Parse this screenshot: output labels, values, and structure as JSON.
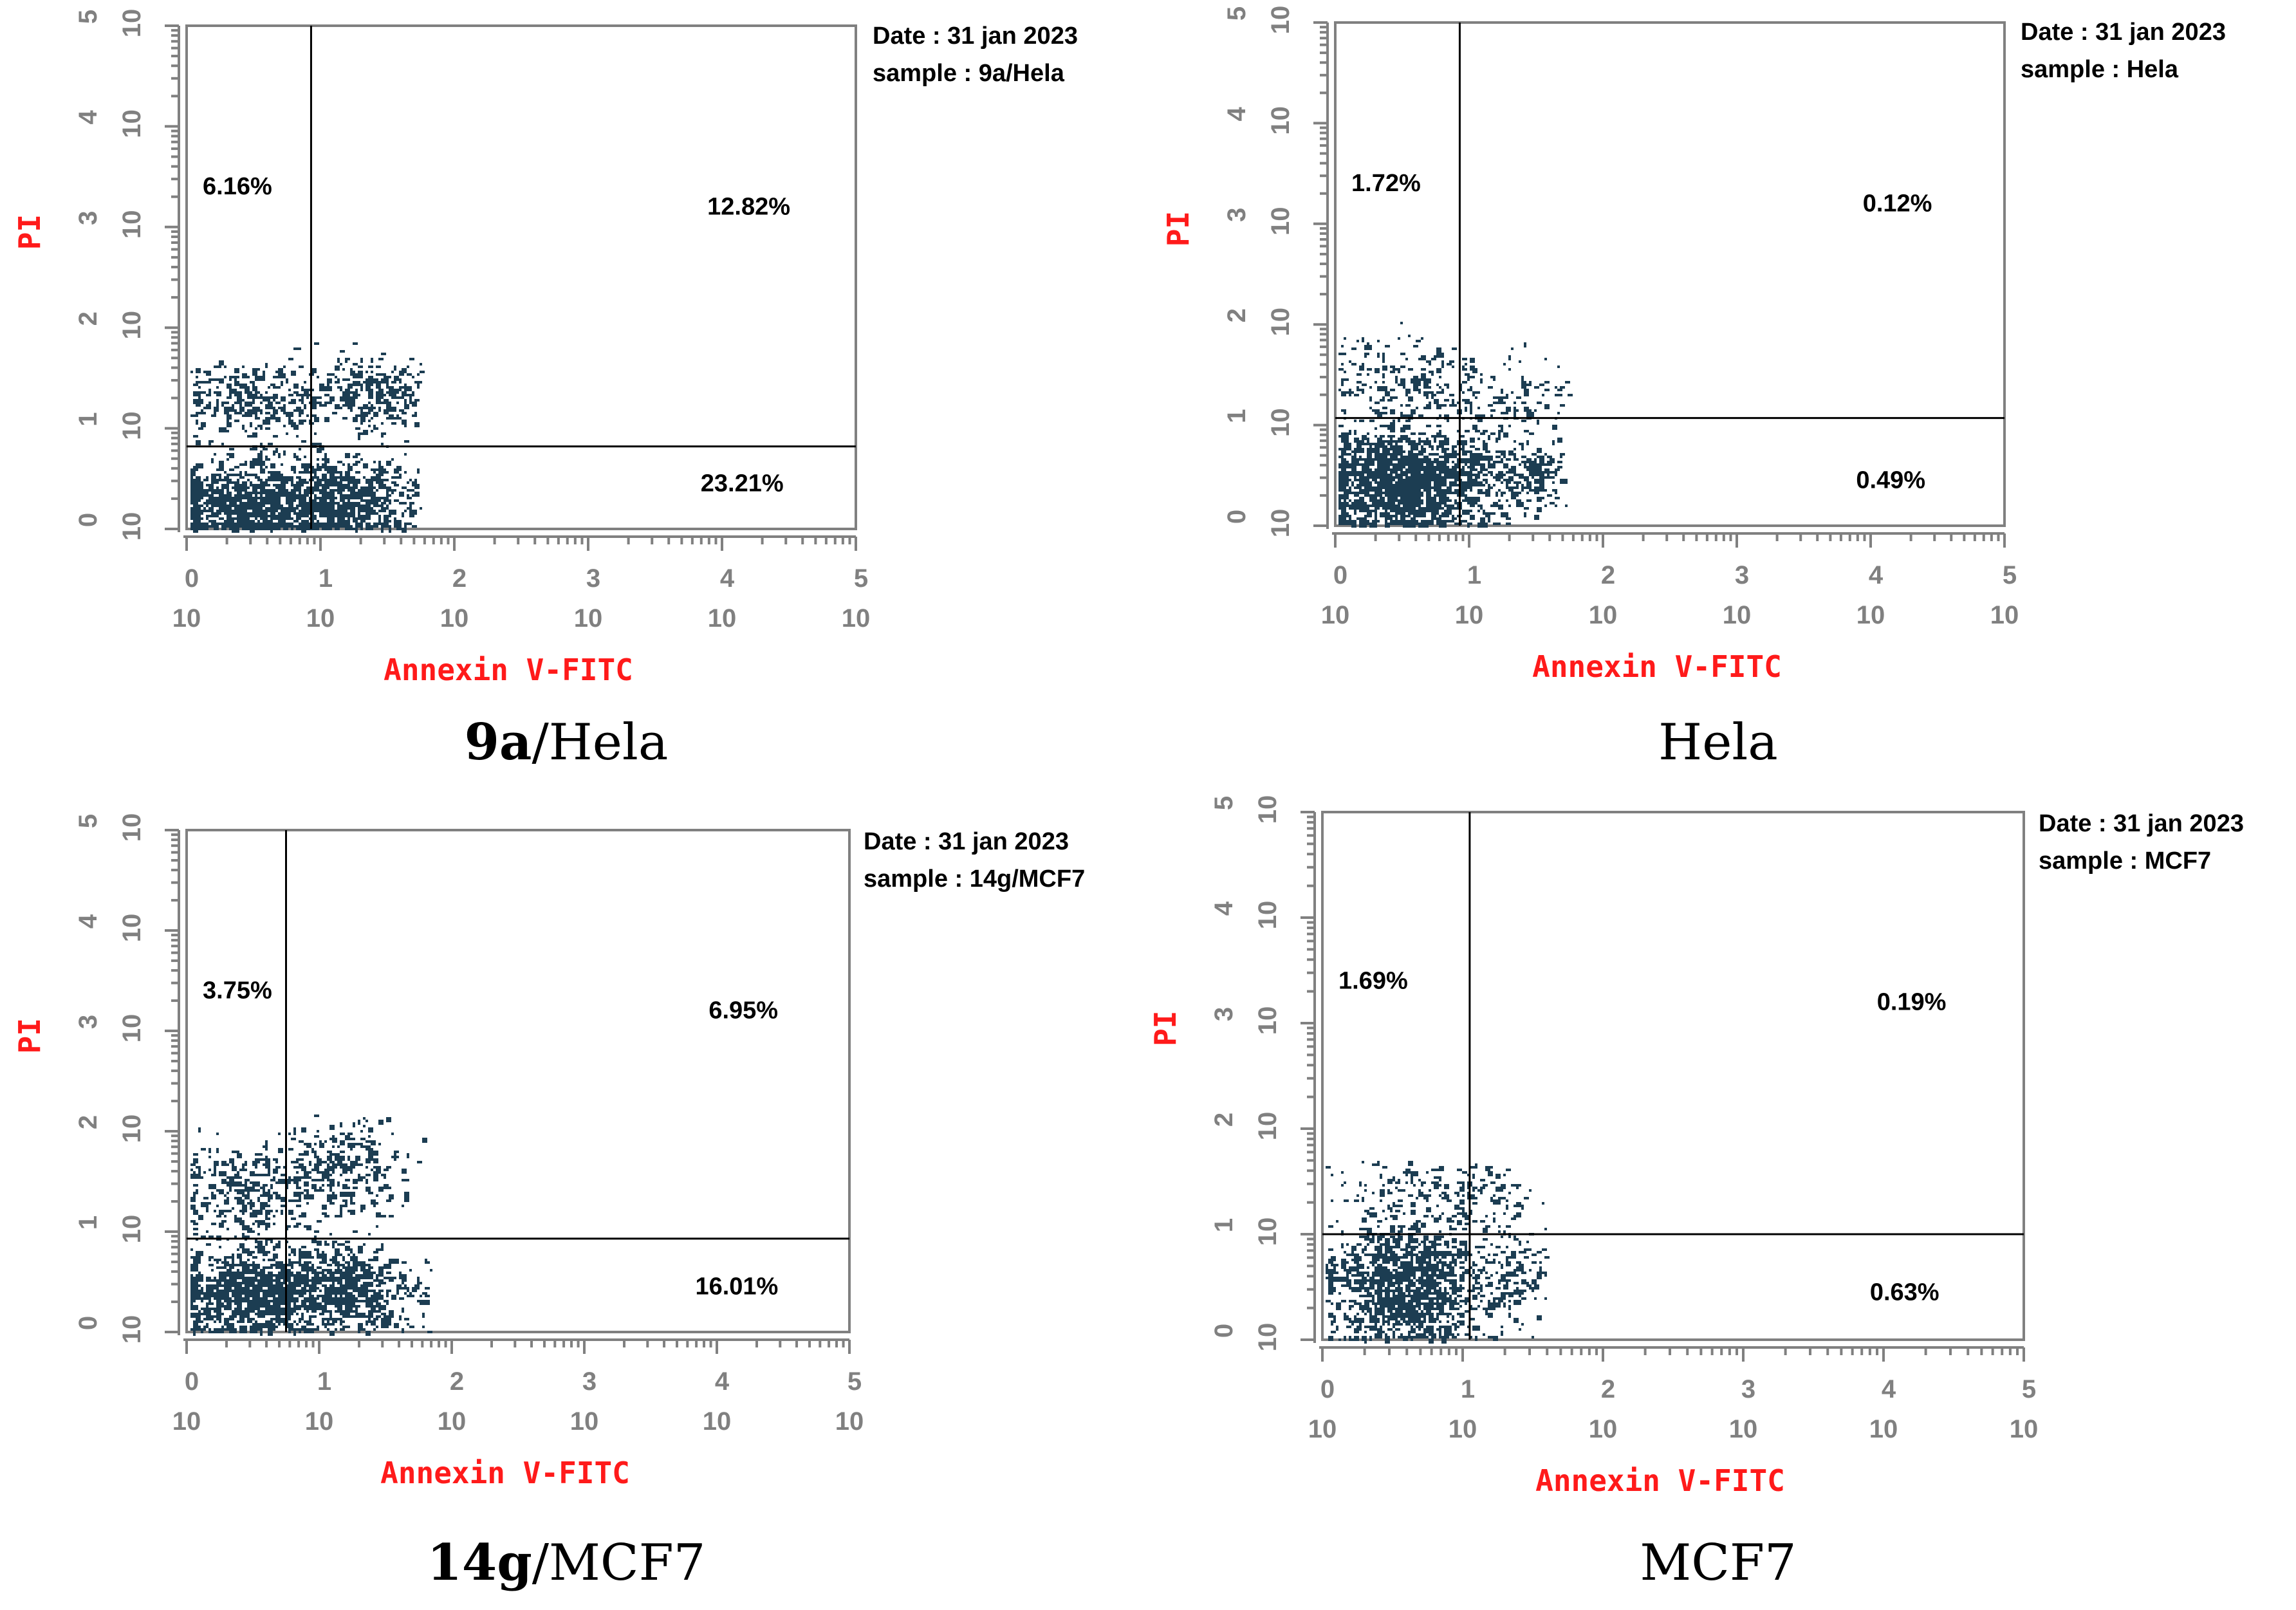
{
  "chart_data": [
    {
      "type": "scatter",
      "caption_bold": "9a",
      "caption_rest": "/Hela",
      "xlabel": "Annexin V-FITC",
      "ylabel": "PI",
      "date_line": "Date : 31 jan 2023",
      "sample_line": "sample : 9a/Hela",
      "xlim": [
        0,
        5
      ],
      "ylim": [
        0,
        5
      ],
      "log_base": "10",
      "ticks": [
        "0",
        "1",
        "2",
        "3",
        "4",
        "5"
      ],
      "gate": {
        "x": 0.93,
        "y": 0.82
      },
      "quadrants": {
        "upper_left": "6.16%",
        "upper_right": "12.82%",
        "lower_right": "23.21%"
      },
      "clusters": [
        {
          "cx": 0.45,
          "cy": 0.25,
          "sx": 0.35,
          "sy": 0.22,
          "n": 1000
        },
        {
          "cx": 1.15,
          "cy": 0.3,
          "sx": 0.3,
          "sy": 0.22,
          "n": 650
        },
        {
          "cx": 0.5,
          "cy": 1.3,
          "sx": 0.28,
          "sy": 0.18,
          "n": 300
        },
        {
          "cx": 1.4,
          "cy": 1.35,
          "sx": 0.22,
          "sy": 0.18,
          "n": 300
        }
      ],
      "x_max": 1.75,
      "y_max": 2.0
    },
    {
      "type": "scatter",
      "caption_bold": "",
      "caption_rest": "Hela",
      "xlabel": "Annexin V-FITC",
      "ylabel": "PI",
      "date_line": "Date : 31 jan 2023",
      "sample_line": "sample : Hela",
      "xlim": [
        0,
        5
      ],
      "ylim": [
        0,
        5
      ],
      "log_base": "10",
      "ticks": [
        "0",
        "1",
        "2",
        "3",
        "4",
        "5"
      ],
      "gate": {
        "x": 0.93,
        "y": 1.07
      },
      "quadrants": {
        "upper_left": "1.72%",
        "upper_right": "0.12%",
        "lower_right": "0.49%"
      },
      "clusters": [
        {
          "cx": 0.45,
          "cy": 0.45,
          "sx": 0.3,
          "sy": 0.25,
          "n": 1400
        },
        {
          "cx": 1.05,
          "cy": 0.5,
          "sx": 0.3,
          "sy": 0.25,
          "n": 300
        },
        {
          "cx": 1.5,
          "cy": 0.5,
          "sx": 0.12,
          "sy": 0.15,
          "n": 100
        },
        {
          "cx": 0.5,
          "cy": 1.4,
          "sx": 0.3,
          "sy": 0.25,
          "n": 220
        },
        {
          "cx": 1.3,
          "cy": 1.3,
          "sx": 0.25,
          "sy": 0.2,
          "n": 120
        }
      ],
      "x_max": 1.75,
      "y_max": 2.1
    },
    {
      "type": "scatter",
      "caption_bold": "14g",
      "caption_rest": "/MCF7",
      "xlabel": "Annexin V-FITC",
      "ylabel": "PI",
      "date_line": "Date : 31 jan 2023",
      "sample_line": "sample : 14g/MCF7",
      "xlim": [
        0,
        5
      ],
      "ylim": [
        0,
        5
      ],
      "log_base": "10",
      "ticks": [
        "0",
        "1",
        "2",
        "3",
        "4",
        "5"
      ],
      "gate": {
        "x": 0.75,
        "y": 0.93
      },
      "quadrants": {
        "upper_left": "3.75%",
        "upper_right": "6.95%",
        "lower_right": "16.01%"
      },
      "clusters": [
        {
          "cx": 0.45,
          "cy": 0.4,
          "sx": 0.3,
          "sy": 0.22,
          "n": 900
        },
        {
          "cx": 1.1,
          "cy": 0.45,
          "sx": 0.3,
          "sy": 0.22,
          "n": 700
        },
        {
          "cx": 0.4,
          "cy": 1.4,
          "sx": 0.25,
          "sy": 0.25,
          "n": 300
        },
        {
          "cx": 1.15,
          "cy": 1.6,
          "sx": 0.25,
          "sy": 0.25,
          "n": 300
        }
      ],
      "x_max": 1.85,
      "y_max": 2.2
    },
    {
      "type": "scatter",
      "caption_bold": "",
      "caption_rest": "MCF7",
      "xlabel": "Annexin V-FITC",
      "ylabel": "PI",
      "date_line": "Date : 31 jan 2023",
      "sample_line": "sample : MCF7",
      "xlim": [
        0,
        5
      ],
      "ylim": [
        0,
        5
      ],
      "log_base": "10",
      "ticks": [
        "0",
        "1",
        "2",
        "3",
        "4",
        "5"
      ],
      "gate": {
        "x": 1.05,
        "y": 1.0
      },
      "quadrants": {
        "upper_left": "1.69%",
        "upper_right": "0.19%",
        "lower_right": "0.63%"
      },
      "clusters": [
        {
          "cx": 0.6,
          "cy": 0.5,
          "sx": 0.28,
          "sy": 0.28,
          "n": 1200
        },
        {
          "cx": 0.65,
          "cy": 1.35,
          "sx": 0.3,
          "sy": 0.22,
          "n": 180
        },
        {
          "cx": 1.35,
          "cy": 0.65,
          "sx": 0.12,
          "sy": 0.2,
          "n": 120
        },
        {
          "cx": 1.2,
          "cy": 1.35,
          "sx": 0.2,
          "sy": 0.15,
          "n": 60
        }
      ],
      "x_max": 1.6,
      "y_max": 1.7
    }
  ],
  "colors": {
    "dots": "#1c3d52",
    "label_red": "#ff1a1a",
    "axis_gray": "#808080",
    "text": "#000000"
  }
}
